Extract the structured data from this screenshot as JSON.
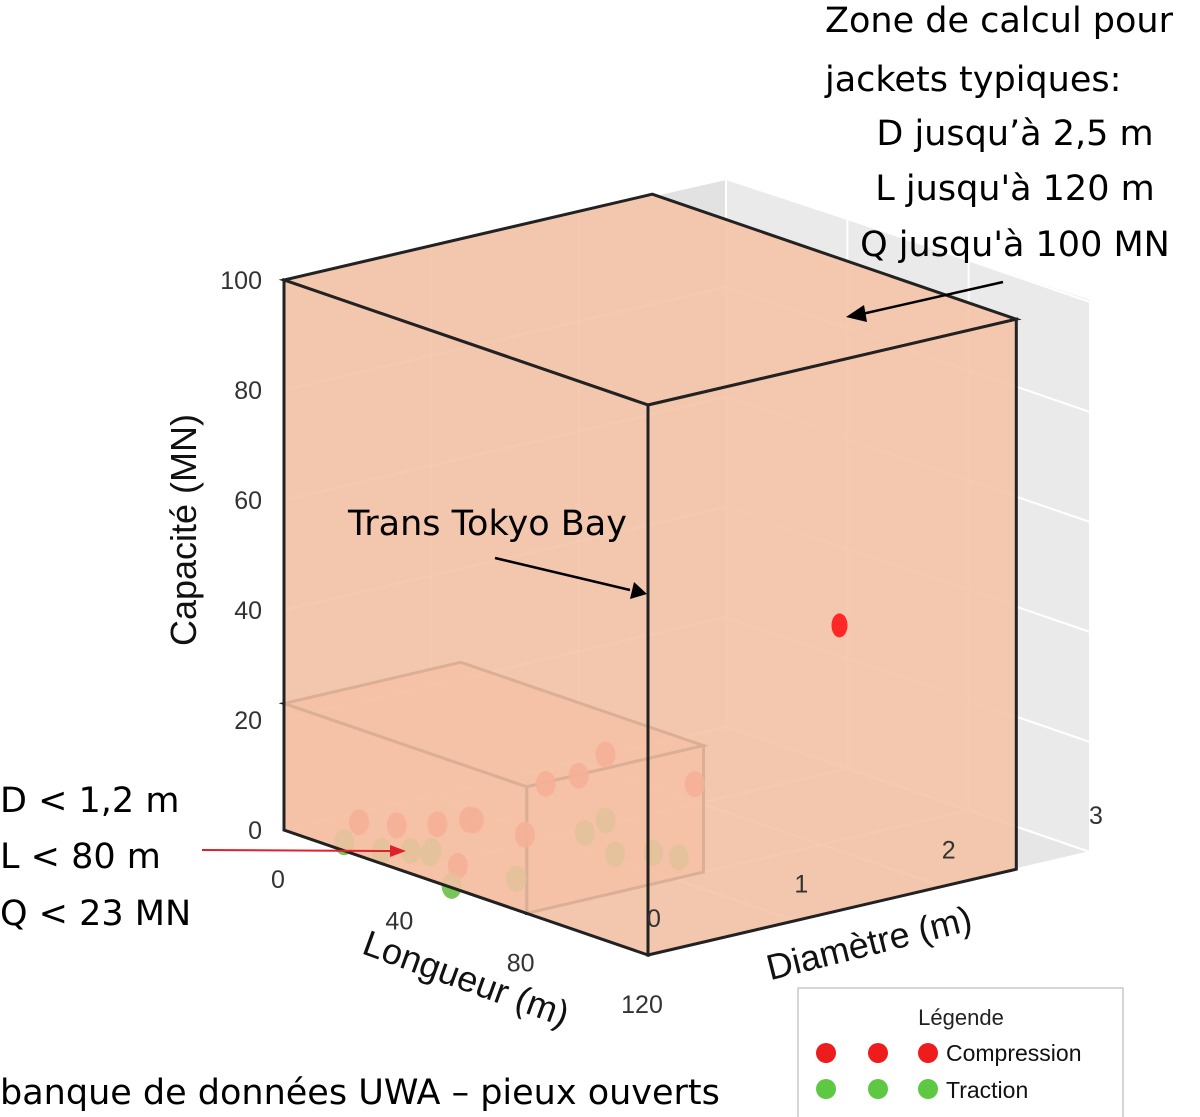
{
  "chart_data": {
    "type": "scatter",
    "projection": "3d",
    "axes": {
      "x": {
        "label": "Longueur (m)",
        "range": [
          0,
          120
        ],
        "ticks": [
          "0",
          "40",
          "80",
          "120"
        ]
      },
      "y": {
        "label": "Diamètre (m)",
        "range": [
          0,
          3
        ],
        "ticks": [
          "0",
          "1",
          "2",
          "3"
        ]
      },
      "z": {
        "label": "Capacité (MN)",
        "range": [
          0,
          100
        ],
        "ticks": [
          "0",
          "20",
          "40",
          "60",
          "80",
          "100"
        ]
      }
    },
    "series": [
      {
        "name": "Compression",
        "color": "#f03c2a",
        "points": [
          [
            15,
            0.2,
            3
          ],
          [
            25,
            0.25,
            4
          ],
          [
            36,
            0.3,
            6
          ],
          [
            44,
            0.35,
            8
          ],
          [
            48,
            0.3,
            9
          ],
          [
            60,
            0.4,
            8
          ],
          [
            62,
            0.5,
            17
          ],
          [
            68,
            0.6,
            19
          ],
          [
            72,
            0.7,
            23
          ],
          [
            50,
            0.15,
            2
          ],
          [
            82,
            1.1,
            17
          ]
        ]
      },
      {
        "name": "Traction",
        "color": "#6cc04a",
        "points": [
          [
            15,
            0.1,
            0
          ],
          [
            25,
            0.15,
            0
          ],
          [
            32,
            0.2,
            1
          ],
          [
            36,
            0.25,
            1
          ],
          [
            38,
            0.22,
            2
          ],
          [
            48,
            0.15,
            -2
          ],
          [
            62,
            0.3,
            1
          ],
          [
            70,
            0.6,
            9
          ],
          [
            80,
            0.6,
            7
          ],
          [
            72,
            0.7,
            11
          ],
          [
            78,
            0.9,
            5
          ],
          [
            84,
            0.95,
            5
          ]
        ]
      },
      {
        "name": "Trans Tokyo Bay",
        "color": "#ff1a1a",
        "points": [
          [
            86,
            2.0,
            41
          ]
        ]
      }
    ],
    "boxes": [
      {
        "name": "Zone UWA",
        "x": [
          0,
          80
        ],
        "y": [
          0,
          1.2
        ],
        "z": [
          0,
          23
        ]
      },
      {
        "name": "Zone jackets",
        "x": [
          0,
          120
        ],
        "y": [
          0,
          2.5
        ],
        "z": [
          0,
          100
        ]
      }
    ],
    "annotations": {
      "small_zone": [
        "D < 1,2 m",
        "L < 80 m",
        "Q < 23 MN"
      ],
      "large_zone": [
        "Zone de calcul pour",
        "jackets typiques:",
        "D jusqu’à 2,5 m",
        "L jusqu'à 120 m",
        "Q jusqu'à 100 MN"
      ],
      "tokyo": "Trans Tokyo Bay"
    },
    "legend": {
      "title": "Légende",
      "entries": [
        {
          "label": "Compression",
          "color": "#f03c2a"
        },
        {
          "label": "Traction",
          "color": "#6cc04a"
        }
      ]
    },
    "caption": "banque de données UWA – pieux ouverts"
  }
}
